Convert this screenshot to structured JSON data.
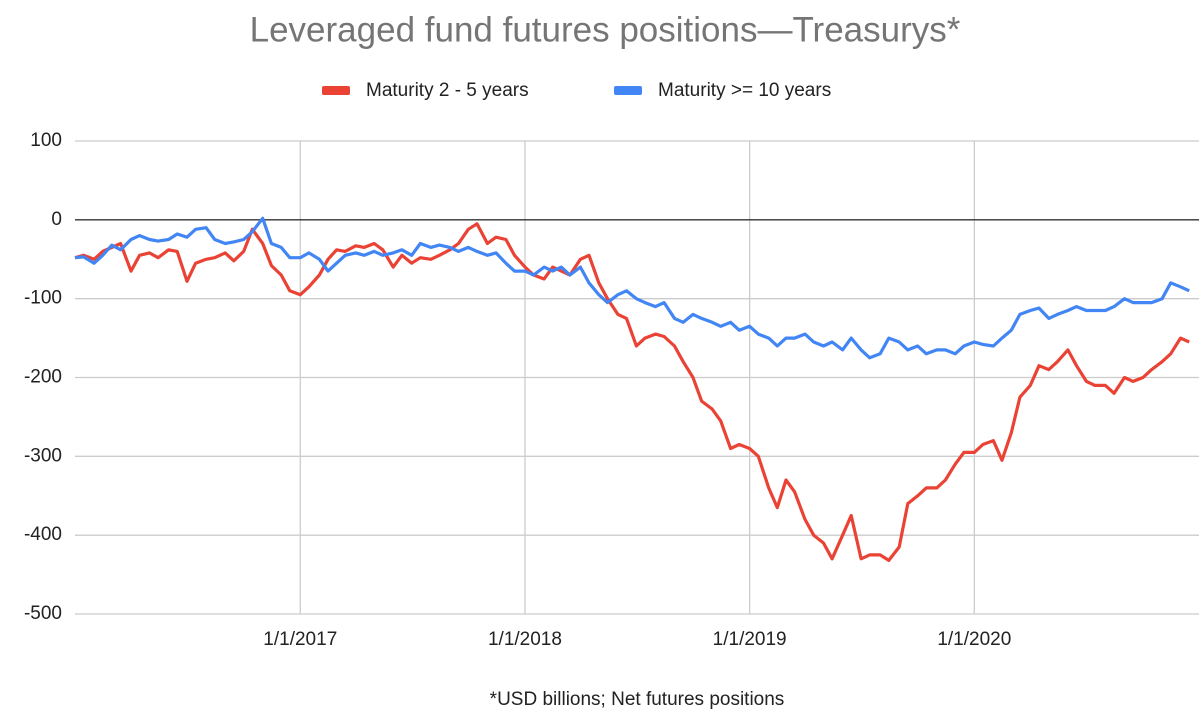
{
  "chart_data": {
    "type": "line",
    "title": "Leveraged fund futures positions—Treasurys*",
    "xlabel": "*USD billions; Net futures positions",
    "x": [
      "1/1/2016",
      "1/15/2016",
      "2/1/2016",
      "2/15/2016",
      "3/1/2016",
      "3/15/2016",
      "4/1/2016",
      "4/15/2016",
      "5/1/2016",
      "5/15/2016",
      "6/1/2016",
      "6/15/2016",
      "7/1/2016",
      "7/15/2016",
      "8/1/2016",
      "8/15/2016",
      "9/1/2016",
      "9/15/2016",
      "10/1/2016",
      "10/15/2016",
      "11/1/2016",
      "11/15/2016",
      "12/1/2016",
      "12/15/2016",
      "1/1/2017",
      "1/15/2017",
      "2/1/2017",
      "2/15/2017",
      "3/1/2017",
      "3/15/2017",
      "4/1/2017",
      "4/15/2017",
      "5/1/2017",
      "5/15/2017",
      "6/1/2017",
      "6/15/2017",
      "7/1/2017",
      "7/15/2017",
      "8/1/2017",
      "8/15/2017",
      "9/1/2017",
      "9/15/2017",
      "10/1/2017",
      "10/15/2017",
      "11/1/2017",
      "11/15/2017",
      "12/1/2017",
      "12/15/2017",
      "1/1/2018",
      "1/15/2018",
      "2/1/2018",
      "2/15/2018",
      "3/1/2018",
      "3/15/2018",
      "4/1/2018",
      "4/15/2018",
      "5/1/2018",
      "5/15/2018",
      "6/1/2018",
      "6/15/2018",
      "7/1/2018",
      "7/15/2018",
      "8/1/2018",
      "8/15/2018",
      "9/1/2018",
      "9/15/2018",
      "10/1/2018",
      "10/15/2018",
      "11/1/2018",
      "11/15/2018",
      "12/1/2018",
      "12/15/2018",
      "1/1/2019",
      "1/15/2019",
      "2/1/2019",
      "2/15/2019",
      "3/1/2019",
      "3/15/2019",
      "4/1/2019",
      "4/15/2019",
      "5/1/2019",
      "5/15/2019",
      "6/1/2019",
      "6/15/2019",
      "7/1/2019",
      "7/15/2019",
      "8/1/2019",
      "8/15/2019",
      "9/1/2019",
      "9/15/2019",
      "10/1/2019",
      "10/15/2019",
      "11/1/2019",
      "11/15/2019",
      "12/1/2019",
      "12/15/2019",
      "1/1/2020",
      "1/15/2020",
      "2/1/2020",
      "2/15/2020",
      "3/1/2020",
      "3/15/2020",
      "4/1/2020",
      "4/15/2020",
      "5/1/2020",
      "5/15/2020",
      "6/1/2020",
      "6/15/2020",
      "7/1/2020",
      "7/15/2020",
      "8/1/2020",
      "8/15/2020",
      "9/1/2020",
      "9/15/2020",
      "10/1/2020",
      "10/15/2020",
      "11/1/2020",
      "11/15/2020",
      "12/1/2020",
      "12/15/2020"
    ],
    "series": [
      {
        "name": "Maturity 2 - 5 years",
        "color": "#ea4335",
        "values": [
          -48,
          -45,
          -50,
          -40,
          -35,
          -30,
          -65,
          -45,
          -42,
          -48,
          -38,
          -40,
          -78,
          -55,
          -50,
          -48,
          -42,
          -52,
          -40,
          -12,
          -30,
          -58,
          -70,
          -90,
          -95,
          -85,
          -70,
          -50,
          -38,
          -40,
          -33,
          -35,
          -30,
          -38,
          -60,
          -45,
          -55,
          -48,
          -50,
          -45,
          -38,
          -30,
          -12,
          -5,
          -30,
          -22,
          -25,
          -45,
          -60,
          -70,
          -75,
          -60,
          -65,
          -70,
          -50,
          -45,
          -80,
          -100,
          -120,
          -125,
          -160,
          -150,
          -145,
          -148,
          -160,
          -180,
          -200,
          -230,
          -240,
          -255,
          -290,
          -285,
          -290,
          -300,
          -340,
          -365,
          -330,
          -345,
          -380,
          -400,
          -410,
          -430,
          -400,
          -375,
          -430,
          -425,
          -425,
          -432,
          -415,
          -360,
          -350,
          -340,
          -340,
          -330,
          -310,
          -295,
          -295,
          -285,
          -280,
          -305,
          -270,
          -225,
          -210,
          -185,
          -190,
          -180,
          -165,
          -185,
          -205,
          -210,
          -210,
          -220,
          -200,
          -205,
          -200,
          -190,
          -180,
          -170,
          -150,
          -155
        ]
      },
      {
        "name": "Maturity >= 10 years",
        "color": "#4285f4",
        "values": [
          -48,
          -47,
          -55,
          -45,
          -32,
          -38,
          -25,
          -20,
          -25,
          -27,
          -25,
          -18,
          -22,
          -12,
          -10,
          -25,
          -30,
          -28,
          -25,
          -15,
          2,
          -30,
          -35,
          -48,
          -48,
          -42,
          -50,
          -65,
          -55,
          -45,
          -42,
          -45,
          -40,
          -45,
          -42,
          -38,
          -45,
          -30,
          -35,
          -32,
          -35,
          -40,
          -35,
          -40,
          -45,
          -42,
          -55,
          -65,
          -65,
          -70,
          -60,
          -65,
          -60,
          -70,
          -60,
          -80,
          -95,
          -105,
          -95,
          -90,
          -100,
          -105,
          -110,
          -105,
          -125,
          -130,
          -120,
          -125,
          -130,
          -135,
          -130,
          -140,
          -135,
          -145,
          -150,
          -160,
          -150,
          -150,
          -145,
          -155,
          -160,
          -155,
          -165,
          -150,
          -165,
          -175,
          -170,
          -150,
          -155,
          -165,
          -160,
          -170,
          -165,
          -165,
          -170,
          -160,
          -155,
          -158,
          -160,
          -150,
          -140,
          -120,
          -115,
          -112,
          -125,
          -120,
          -115,
          -110,
          -115,
          -115,
          -115,
          -110,
          -100,
          -105,
          -105,
          -105,
          -100,
          -80,
          -85,
          -90
        ]
      }
    ],
    "xlim": [
      "1/1/2016",
      "12/31/2020"
    ],
    "xticks": [
      "1/1/2017",
      "1/1/2018",
      "1/1/2019",
      "1/1/2020"
    ],
    "ylim": [
      -500,
      100
    ],
    "yticks": [
      100,
      0,
      -100,
      -200,
      -300,
      -400,
      -500
    ],
    "grid": true,
    "legend": "top"
  }
}
